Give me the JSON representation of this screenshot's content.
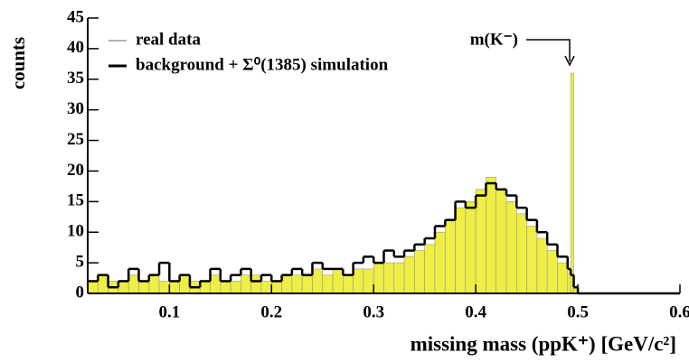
{
  "chart_data": {
    "type": "histogram",
    "y_label": "counts",
    "x_label": "missing mass (ppK⁺) [GeV/c²]",
    "annotation": "m(K⁻)",
    "bins": [
      0.02,
      0.03,
      0.04,
      0.05,
      0.06,
      0.07,
      0.08,
      0.09,
      0.1,
      0.11,
      0.12,
      0.13,
      0.14,
      0.15,
      0.16,
      0.17,
      0.18,
      0.19,
      0.2,
      0.21,
      0.22,
      0.23,
      0.24,
      0.25,
      0.26,
      0.27,
      0.28,
      0.29,
      0.3,
      0.31,
      0.32,
      0.33,
      0.34,
      0.35,
      0.36,
      0.37,
      0.38,
      0.39,
      0.4,
      0.41,
      0.42,
      0.43,
      0.44,
      0.45,
      0.46,
      0.47,
      0.48,
      0.49,
      0.493,
      0.496,
      0.5,
      0.6
    ],
    "series": [
      {
        "name": "real data",
        "color": "#eeee44",
        "values": [
          2,
          3,
          2,
          2,
          3,
          2,
          3,
          2,
          2,
          3,
          2,
          2,
          3,
          2,
          2,
          3,
          3,
          2,
          2,
          3,
          3,
          3,
          4,
          3,
          4,
          3,
          4,
          4,
          5,
          5,
          5,
          6,
          7,
          8,
          10,
          12,
          14,
          15,
          17,
          19,
          17,
          15,
          13,
          11,
          9,
          7,
          5,
          4,
          36,
          1,
          0
        ]
      },
      {
        "name": "background + Σ⁰(1385) simulation",
        "color": "#000000",
        "values": [
          2,
          3,
          1,
          2,
          4,
          2,
          3,
          5,
          2,
          3,
          1,
          2,
          4,
          2,
          3,
          4,
          2,
          3,
          2,
          3,
          4,
          3,
          5,
          4,
          4,
          3,
          5,
          6,
          5,
          7,
          6,
          7,
          8,
          9,
          11,
          12,
          15,
          14,
          16,
          18,
          17,
          16,
          14,
          12,
          10,
          8,
          6,
          4,
          3,
          1,
          0
        ]
      }
    ],
    "xlim": [
      0.02,
      0.6
    ],
    "ylim": [
      0,
      45
    ],
    "xticks": [
      0.1,
      0.2,
      0.3,
      0.4,
      0.5,
      0.6
    ],
    "yticks": [
      0,
      5,
      10,
      15,
      20,
      25,
      30,
      35,
      40,
      45
    ]
  }
}
